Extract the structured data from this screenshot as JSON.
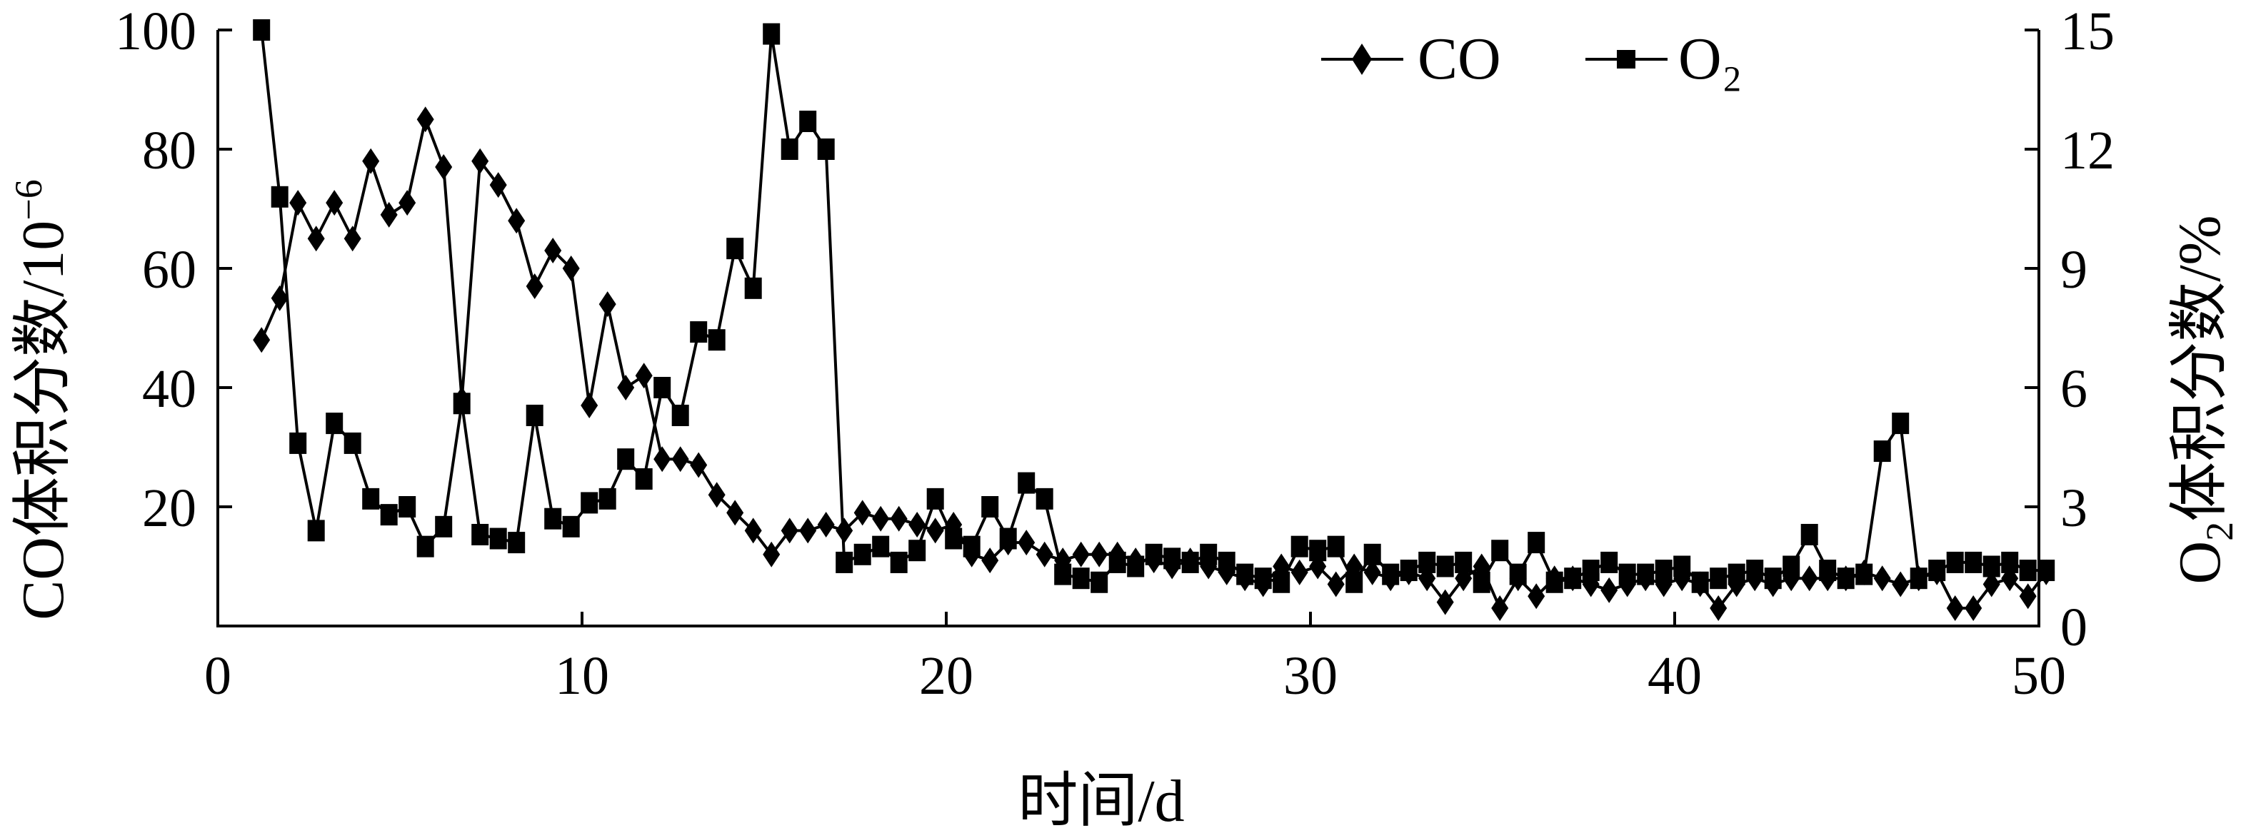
{
  "chart_data": {
    "type": "line",
    "title": "",
    "xlabel": "时间/d",
    "ylabel_left": {
      "main": "CO体积分数/10",
      "sup": "−6"
    },
    "ylabel_right": {
      "main1": "O",
      "sub": "2",
      "main2": "体积分数/%"
    },
    "xlim": [
      0,
      50
    ],
    "ylim_left": [
      0,
      100
    ],
    "ylim_right": [
      0,
      15
    ],
    "x_ticks": [
      0,
      10,
      20,
      30,
      40,
      50
    ],
    "y_left_ticks": [
      20,
      40,
      60,
      80,
      100
    ],
    "y_right_ticks": [
      0,
      3,
      6,
      9,
      12,
      15
    ],
    "x_tick_labels": [
      "0",
      "10",
      "20",
      "30",
      "40",
      "50"
    ],
    "y_left_tick_labels": [
      "20",
      "40",
      "60",
      "80",
      "100"
    ],
    "y_right_tick_labels": [
      "0",
      "3",
      "6",
      "9",
      "12",
      "15"
    ],
    "grid": false,
    "legend_position": "top-right",
    "series": [
      {
        "name": "CO",
        "axis": "left",
        "marker": "diamond",
        "x": [
          1.2,
          1.7,
          2.2,
          2.7,
          3.2,
          3.7,
          4.2,
          4.7,
          5.2,
          5.7,
          6.2,
          6.7,
          7.2,
          7.7,
          8.2,
          8.7,
          9.2,
          9.7,
          10.2,
          10.7,
          11.2,
          11.7,
          12.2,
          12.7,
          13.2,
          13.7,
          14.2,
          14.7,
          15.2,
          15.7,
          16.2,
          16.7,
          17.2,
          17.7,
          18.2,
          18.7,
          19.2,
          19.7,
          20.2,
          20.7,
          21.2,
          21.7,
          22.2,
          22.7,
          23.2,
          23.7,
          24.2,
          24.7,
          25.2,
          25.7,
          26.2,
          26.7,
          27.2,
          27.7,
          28.2,
          28.7,
          29.2,
          29.7,
          30.2,
          30.7,
          31.2,
          31.7,
          32.2,
          32.7,
          33.2,
          33.7,
          34.2,
          34.7,
          35.2,
          35.7,
          36.2,
          36.7,
          37.2,
          37.7,
          38.2,
          38.7,
          39.2,
          39.7,
          40.2,
          40.7,
          41.2,
          41.7,
          42.2,
          42.7,
          43.2,
          43.7,
          44.2,
          44.7,
          45.2,
          45.7,
          46.2,
          46.7,
          47.2,
          47.7,
          48.2,
          48.7,
          49.2,
          49.7,
          50.2
        ],
        "y": [
          48,
          55,
          71,
          65,
          71,
          65,
          78,
          69,
          71,
          85,
          77,
          38,
          78,
          74,
          68,
          57,
          63,
          60,
          37,
          54,
          40,
          42,
          28,
          28,
          27,
          22,
          19,
          16,
          12,
          16,
          16,
          17,
          16,
          19,
          18,
          18,
          17,
          16,
          17,
          12,
          11,
          14,
          14,
          12,
          11,
          12,
          12,
          12,
          11,
          11,
          10,
          11,
          10,
          9,
          8,
          7,
          10,
          9,
          10,
          7,
          10,
          9,
          8,
          9,
          8,
          4,
          8,
          10,
          3,
          8,
          5,
          8,
          8,
          7,
          6,
          7,
          8,
          7,
          8,
          7,
          3,
          7,
          8,
          7,
          8,
          8,
          8,
          8,
          9,
          8,
          7,
          8,
          9,
          3,
          3,
          7,
          8,
          5,
          9
        ]
      },
      {
        "name": "O₂",
        "axis": "right",
        "marker": "square",
        "x": [
          1.2,
          1.7,
          2.2,
          2.7,
          3.2,
          3.7,
          4.2,
          4.7,
          5.2,
          5.7,
          6.2,
          6.7,
          7.2,
          7.7,
          8.2,
          8.7,
          9.2,
          9.7,
          10.2,
          10.7,
          11.2,
          11.7,
          12.2,
          12.7,
          13.2,
          13.7,
          14.2,
          14.7,
          15.2,
          15.7,
          16.2,
          16.7,
          17.2,
          17.7,
          18.2,
          18.7,
          19.2,
          19.7,
          20.2,
          20.7,
          21.2,
          21.7,
          22.2,
          22.7,
          23.2,
          23.7,
          24.2,
          24.7,
          25.2,
          25.7,
          26.2,
          26.7,
          27.2,
          27.7,
          28.2,
          28.7,
          29.2,
          29.7,
          30.2,
          30.7,
          31.2,
          31.7,
          32.2,
          32.7,
          33.2,
          33.7,
          34.2,
          34.7,
          35.2,
          35.7,
          36.2,
          36.7,
          37.2,
          37.7,
          38.2,
          38.7,
          39.2,
          39.7,
          40.2,
          40.7,
          41.2,
          41.7,
          42.2,
          42.7,
          43.2,
          43.7,
          44.2,
          44.7,
          45.2,
          45.7,
          46.2,
          46.7,
          47.2,
          47.7,
          48.2,
          48.7,
          49.2,
          49.7,
          50.2
        ],
        "y": [
          15.0,
          10.8,
          4.6,
          2.4,
          5.1,
          4.6,
          3.2,
          2.8,
          3.0,
          2.0,
          2.5,
          5.6,
          2.3,
          2.2,
          2.1,
          5.3,
          2.7,
          2.5,
          3.1,
          3.2,
          4.2,
          3.7,
          6.0,
          5.3,
          7.4,
          7.2,
          9.5,
          8.5,
          14.9,
          12.0,
          12.7,
          12.0,
          1.6,
          1.8,
          2.0,
          1.6,
          1.9,
          3.2,
          2.2,
          2.0,
          3.0,
          2.2,
          3.6,
          3.2,
          1.3,
          1.2,
          1.1,
          1.6,
          1.5,
          1.8,
          1.7,
          1.6,
          1.8,
          1.6,
          1.3,
          1.2,
          1.1,
          2.0,
          1.9,
          2.0,
          1.1,
          1.8,
          1.3,
          1.4,
          1.6,
          1.5,
          1.6,
          1.1,
          1.9,
          1.3,
          2.1,
          1.1,
          1.2,
          1.4,
          1.6,
          1.3,
          1.3,
          1.4,
          1.5,
          1.1,
          1.2,
          1.3,
          1.4,
          1.2,
          1.5,
          2.3,
          1.4,
          1.2,
          1.3,
          4.4,
          5.1,
          1.2,
          1.4,
          1.6,
          1.6,
          1.5,
          1.6,
          1.4,
          1.4
        ]
      }
    ]
  }
}
